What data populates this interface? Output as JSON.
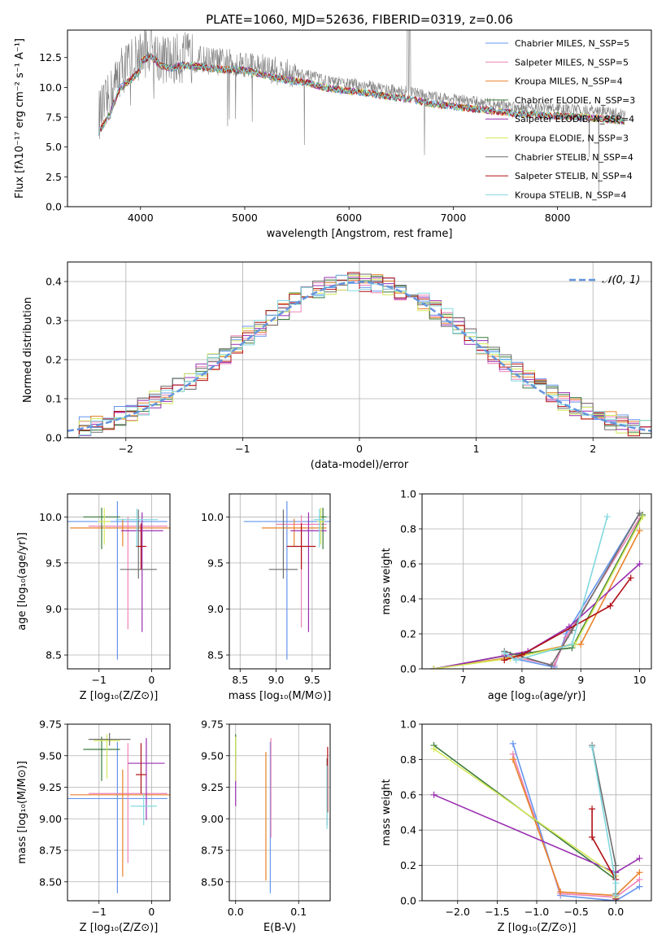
{
  "colors": [
    "#6495ed",
    "#ee82b6",
    "#e8822a",
    "#3a7a3a",
    "#9a2fb0",
    "#d4e85a",
    "#6e6e6e",
    "#b00f14",
    "#80d8e0"
  ],
  "chart_data": [
    {
      "id": "spectrum",
      "type": "line",
      "title": "PLATE=1060, MJD=52636, FIBERID=0319, z=0.06",
      "xlabel": "wavelength [Angstrom, rest frame]",
      "ylabel": "Flux [fλ10⁻¹⁷ erg cm⁻² s⁻¹ A⁻¹]",
      "xlim": [
        3300,
        8900
      ],
      "ylim": [
        0,
        14.8
      ],
      "xticks": [
        4000,
        5000,
        6000,
        7000,
        8000
      ],
      "yticks": [
        0.0,
        2.5,
        5.0,
        7.5,
        10.0,
        12.5
      ],
      "legend_position": "upper right",
      "legend": [
        "Chabrier MILES, N_SSP=5",
        "Salpeter MILES, N_SSP=5",
        "Kroupa MILES, N_SSP=4",
        "Chabrier ELODIE, N_SSP=3",
        "Salpeter ELODIE, N_SSP=4",
        "Kroupa ELODIE, N_SSP=3",
        "Chabrier STELIB, N_SSP=4",
        "Salpeter STELIB, N_SSP=4",
        "Kroupa STELIB, N_SSP=4"
      ],
      "data_envelope": {
        "x": [
          3600,
          3700,
          3800,
          3900,
          4000,
          4100,
          4200,
          4300,
          4400,
          4600,
          4800,
          5000,
          5200,
          5400,
          5600,
          5800,
          6000,
          6200,
          6400,
          6600,
          6800,
          7000,
          7200,
          7400,
          7600,
          7800,
          8000,
          8200,
          8400,
          8600,
          8800
        ],
        "y": [
          7.7,
          9.0,
          11.3,
          12.0,
          12.8,
          13.2,
          12.4,
          12.2,
          12.5,
          12.3,
          12.1,
          12.0,
          11.6,
          11.2,
          11.0,
          10.5,
          10.3,
          10.1,
          9.8,
          9.6,
          9.2,
          9.0,
          8.8,
          8.6,
          8.4,
          8.3,
          8.2,
          8.1,
          8.0,
          7.8,
          7.6
        ]
      }
    },
    {
      "id": "residuals",
      "type": "line",
      "xlabel": "(data-model)/error",
      "ylabel": "Normed distribution",
      "xlim": [
        -2.5,
        2.5
      ],
      "ylim": [
        0,
        0.45
      ],
      "xticks": [
        -2,
        -1,
        0,
        1,
        2
      ],
      "yticks": [
        0.0,
        0.1,
        0.2,
        0.3,
        0.4
      ],
      "legend": [
        "𝒩(0, 1)"
      ],
      "gaussian": {
        "mean": 0,
        "sigma": 1
      }
    },
    {
      "id": "age-vs-Z",
      "type": "scatter",
      "xlabel": "Z [log₁₀(Z/Z⊙)]",
      "ylabel": "age  [log₁₀(age/yr)]",
      "xlim": [
        -1.6,
        0.35
      ],
      "ylim": [
        8.35,
        10.25
      ],
      "xticks": [
        -1,
        0
      ],
      "yticks": [
        8.5,
        9.0,
        9.5,
        10.0
      ],
      "points": [
        {
          "x": -0.65,
          "y": 9.95,
          "xerr": 0.95,
          "yerr": [
            1.5,
            0.22
          ]
        },
        {
          "x": -0.45,
          "y": 9.9,
          "xerr": 0.75,
          "yerr": [
            1.12,
            0.1
          ]
        },
        {
          "x": -0.55,
          "y": 9.88,
          "xerr": 1.0,
          "yerr": [
            0.2,
            0.1
          ]
        },
        {
          "x": -0.95,
          "y": 10.0,
          "xerr": 0.35,
          "yerr": [
            0.35,
            0.1
          ]
        },
        {
          "x": -0.18,
          "y": 9.85,
          "xerr": 0.4,
          "yerr": [
            1.1,
            0.2
          ]
        },
        {
          "x": -0.9,
          "y": 9.95,
          "xerr": 0.12,
          "yerr": [
            0.25,
            0.15
          ]
        },
        {
          "x": -0.25,
          "y": 9.43,
          "xerr": 0.35,
          "yerr": [
            0.1,
            0.65
          ]
        },
        {
          "x": -0.2,
          "y": 9.68,
          "xerr": 0.1,
          "yerr": [
            0.25,
            0.25
          ]
        },
        {
          "x": -0.28,
          "y": 9.97,
          "xerr": 0.4,
          "yerr": [
            0.3,
            0.12
          ]
        }
      ]
    },
    {
      "id": "age-vs-mass",
      "type": "scatter",
      "xlabel": "mass [log₁₀(M/M⊙)]",
      "xlim": [
        8.35,
        9.75
      ],
      "ylim": [
        8.35,
        10.25
      ],
      "xticks": [
        8.5,
        9.0,
        9.5
      ],
      "yticks": [
        8.5,
        9.0,
        9.5,
        10.0
      ],
      "points": [
        {
          "x": 9.15,
          "y": 9.95,
          "xerr": 0.6,
          "yerr": [
            1.5,
            0.22
          ]
        },
        {
          "x": 9.35,
          "y": 9.92,
          "xerr": 0.35,
          "yerr": [
            1.12,
            0.1
          ]
        },
        {
          "x": 9.25,
          "y": 9.88,
          "xerr": 0.45,
          "yerr": [
            0.2,
            0.1
          ]
        },
        {
          "x": 9.65,
          "y": 10.0,
          "xerr": 0.05,
          "yerr": [
            0.35,
            0.1
          ]
        },
        {
          "x": 9.45,
          "y": 9.85,
          "xerr": 0.25,
          "yerr": [
            1.1,
            0.2
          ]
        },
        {
          "x": 9.62,
          "y": 9.95,
          "xerr": 0.05,
          "yerr": [
            0.25,
            0.15
          ]
        },
        {
          "x": 9.1,
          "y": 9.43,
          "xerr": 0.2,
          "yerr": [
            0.1,
            0.65
          ]
        },
        {
          "x": 9.35,
          "y": 9.68,
          "xerr": 0.2,
          "yerr": [
            0.25,
            0.25
          ]
        },
        {
          "x": 9.6,
          "y": 9.97,
          "xerr": 0.08,
          "yerr": [
            0.3,
            0.12
          ]
        }
      ]
    },
    {
      "id": "weight-vs-age",
      "type": "line",
      "xlabel": "age  [log₁₀(age/yr)]",
      "ylabel": "mass weight",
      "xlim": [
        6.3,
        10.2
      ],
      "ylim": [
        0,
        1
      ],
      "xticks": [
        7,
        8,
        9,
        10
      ],
      "yticks": [
        0.0,
        0.2,
        0.4,
        0.6,
        0.8,
        1.0
      ],
      "series": [
        {
          "x": [
            7.7,
            8.55,
            8.75,
            10.0
          ],
          "y": [
            0.07,
            0.01,
            0.2,
            0.89
          ]
        },
        {
          "x": [
            7.7,
            8.55,
            8.75,
            10.0
          ],
          "y": [
            0.08,
            0.02,
            0.18,
            0.86
          ]
        },
        {
          "x": [
            6.5,
            7.7,
            8.85,
            9.0,
            10.0
          ],
          "y": [
            0.0,
            0.06,
            0.14,
            0.14,
            0.79
          ]
        },
        {
          "x": [
            6.5,
            7.8,
            8.85,
            10.05
          ],
          "y": [
            0.0,
            0.08,
            0.12,
            0.88
          ]
        },
        {
          "x": [
            6.5,
            8.1,
            8.8,
            10.0
          ],
          "y": [
            0.0,
            0.1,
            0.24,
            0.6
          ]
        },
        {
          "x": [
            6.5,
            7.8,
            8.9,
            10.05
          ],
          "y": [
            0.0,
            0.06,
            0.14,
            0.87
          ]
        },
        {
          "x": [
            7.7,
            8.5,
            8.85,
            10.0
          ],
          "y": [
            0.1,
            0.02,
            0.22,
            0.89
          ]
        },
        {
          "x": [
            7.7,
            8.0,
            9.5,
            9.85
          ],
          "y": [
            0.05,
            0.08,
            0.36,
            0.52
          ]
        },
        {
          "x": [
            7.7,
            7.9,
            8.85,
            9.45
          ],
          "y": [
            0.09,
            0.05,
            0.14,
            0.87
          ]
        }
      ]
    },
    {
      "id": "mass-vs-Z",
      "type": "scatter",
      "xlabel": "Z [log₁₀(Z/Z⊙)]",
      "ylabel": "mass [log₁₀(M/M⊙)]",
      "xlim": [
        -1.6,
        0.35
      ],
      "ylim": [
        8.35,
        9.75
      ],
      "xticks": [
        -1,
        0
      ],
      "yticks": [
        8.5,
        8.75,
        9.0,
        9.25,
        9.5,
        9.75
      ],
      "points": [
        {
          "x": -0.65,
          "y": 9.16,
          "xerr": 0.95,
          "yerr": [
            0.75,
            0.45
          ]
        },
        {
          "x": -0.45,
          "y": 9.2,
          "xerr": 0.75,
          "yerr": [
            0.55,
            0.4
          ]
        },
        {
          "x": -0.55,
          "y": 9.19,
          "xerr": 1.0,
          "yerr": [
            0.65,
            0.2
          ]
        },
        {
          "x": -0.95,
          "y": 9.55,
          "xerr": 0.35,
          "yerr": [
            0.25,
            0.1
          ]
        },
        {
          "x": -0.1,
          "y": 9.44,
          "xerr": 0.35,
          "yerr": [
            0.45,
            0.2
          ]
        },
        {
          "x": -0.85,
          "y": 9.62,
          "xerr": 0.25,
          "yerr": [
            0.3,
            0.05
          ]
        },
        {
          "x": -0.8,
          "y": 9.63,
          "xerr": 0.4,
          "yerr": [
            0.05,
            0.05
          ]
        },
        {
          "x": -0.2,
          "y": 9.35,
          "xerr": 0.1,
          "yerr": [
            0.15,
            0.25
          ]
        },
        {
          "x": -0.15,
          "y": 9.1,
          "xerr": 0.25,
          "yerr": [
            0.15,
            0.1
          ]
        }
      ]
    },
    {
      "id": "mass-vs-EBV",
      "type": "scatter",
      "xlabel": "E(B-V)",
      "xlim": [
        -0.01,
        0.15
      ],
      "ylim": [
        8.35,
        9.75
      ],
      "xticks": [
        0.0,
        0.1
      ],
      "yticks": [
        8.5,
        8.75,
        9.0,
        9.25,
        9.5,
        9.75
      ],
      "points": [
        {
          "x": 0.055,
          "y": 9.16,
          "yerr": [
            0.75,
            0.45
          ]
        },
        {
          "x": 0.056,
          "y": 9.25,
          "yerr": [
            0.4,
            0.39
          ]
        },
        {
          "x": 0.048,
          "y": 9.01,
          "yerr": [
            0.5,
            0.52
          ]
        },
        {
          "x": 0.0,
          "y": 9.55,
          "yerr": [
            0.1,
            0.12
          ]
        },
        {
          "x": 0.0,
          "y": 9.3,
          "yerr": [
            0.2,
            0.2
          ]
        },
        {
          "x": 0.0,
          "y": 9.45,
          "yerr": [
            0.15,
            0.2
          ]
        },
        {
          "x": 0.145,
          "y": 9.2,
          "yerr": [
            0.25,
            0.28
          ]
        },
        {
          "x": 0.146,
          "y": 9.27,
          "yerr": [
            0.22,
            0.3
          ]
        },
        {
          "x": 0.145,
          "y": 9.2,
          "yerr": [
            0.28,
            0.22
          ]
        }
      ]
    },
    {
      "id": "weight-vs-Z",
      "type": "line",
      "xlabel": "Z [log₁₀(Z/Z⊙)]",
      "ylabel": "mass weight",
      "xlim": [
        -2.45,
        0.45
      ],
      "ylim": [
        0,
        1
      ],
      "xticks": [
        -2.0,
        -1.5,
        -1.0,
        -0.5,
        0.0
      ],
      "yticks": [
        0.0,
        0.2,
        0.4,
        0.6,
        0.8,
        1.0
      ],
      "series": [
        {
          "x": [
            -1.3,
            -0.7,
            0.0,
            0.3
          ],
          "y": [
            0.89,
            0.03,
            0.0,
            0.08
          ]
        },
        {
          "x": [
            -1.3,
            -0.7,
            0.0,
            0.3
          ],
          "y": [
            0.83,
            0.04,
            0.02,
            0.12
          ]
        },
        {
          "x": [
            -1.3,
            -0.7,
            0.0,
            0.3
          ],
          "y": [
            0.8,
            0.05,
            0.03,
            0.16
          ]
        },
        {
          "x": [
            -2.3,
            0.0,
            0.0
          ],
          "y": [
            0.88,
            0.12,
            0.01
          ]
        },
        {
          "x": [
            -2.3,
            0.0,
            0.3
          ],
          "y": [
            0.6,
            0.16,
            0.24
          ]
        },
        {
          "x": [
            -2.3,
            0.0,
            0.0
          ],
          "y": [
            0.86,
            0.14,
            0.02
          ]
        },
        {
          "x": [
            -0.3,
            0.0,
            0.0
          ],
          "y": [
            0.88,
            0.2,
            0.04
          ]
        },
        {
          "x": [
            -0.3,
            -0.3,
            0.0,
            0.0
          ],
          "y": [
            0.52,
            0.36,
            0.12,
            0.01
          ]
        },
        {
          "x": [
            -0.3,
            0.0,
            0.0
          ],
          "y": [
            0.87,
            0.1,
            0.03
          ]
        }
      ]
    }
  ]
}
